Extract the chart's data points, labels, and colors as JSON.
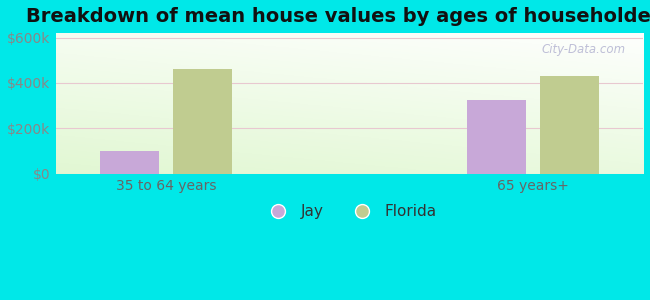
{
  "title": "Breakdown of mean house values by ages of householders",
  "categories": [
    "35 to 64 years",
    "65 years+"
  ],
  "series": {
    "Jay": [
      100000,
      325000
    ],
    "Florida": [
      460000,
      430000
    ]
  },
  "bar_colors": {
    "Jay": "#c8a8d8",
    "Florida": "#c0cc90"
  },
  "ylim": [
    0,
    620000
  ],
  "yticks": [
    0,
    200000,
    400000,
    600000
  ],
  "ytick_labels": [
    "$0",
    "$200k",
    "$400k",
    "$600k"
  ],
  "background_color": "#00e8e8",
  "title_fontsize": 14,
  "legend_fontsize": 11,
  "bar_width": 0.32,
  "watermark": "City-Data.com"
}
